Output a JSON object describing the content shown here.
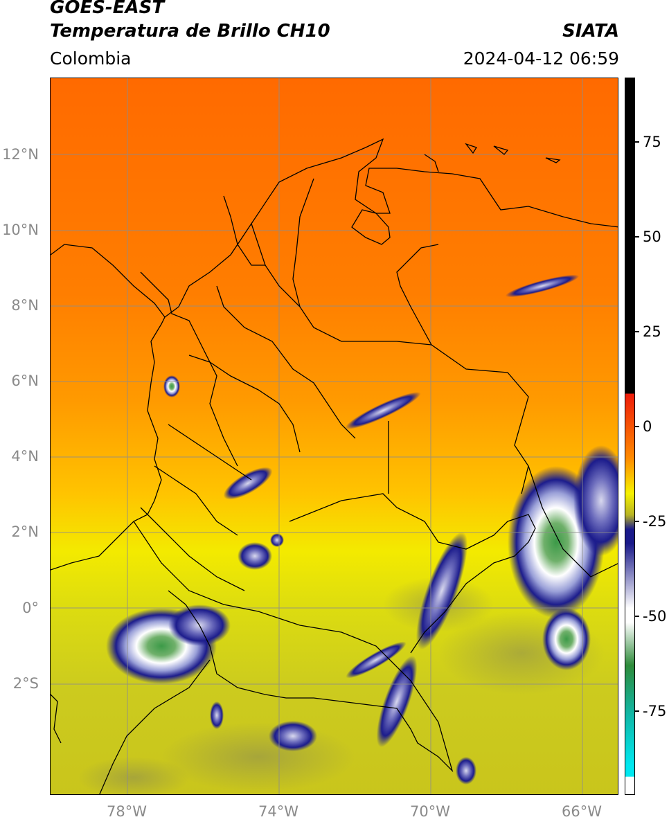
{
  "header": {
    "satellite": "GOES-EAST",
    "product": "Temperatura de Brillo CH10",
    "region": "Colombia",
    "agency": "SIATA",
    "datetime": "2024-04-12 06:59"
  },
  "axes": {
    "lat_labels": [
      "12°N",
      "10°N",
      "8°N",
      "6°N",
      "4°N",
      "2°N",
      "0°",
      "2°S"
    ],
    "lon_labels": [
      "78°W",
      "74°W",
      "70°W",
      "66°W"
    ]
  },
  "colorbar": {
    "ticks": [
      "75",
      "50",
      "25",
      "0",
      "-25",
      "-50",
      "-75"
    ],
    "colors": {
      "black": "#000000",
      "red": "#ee1c0a",
      "orange": "#ff8a00",
      "yellow": "#f6f200",
      "olive": "#b8b424",
      "navy": "#1a1a8a",
      "white": "#ffffff",
      "green": "#2e8b3a",
      "teal": "#10b8a8",
      "cyan": "#00e8f0"
    }
  }
}
